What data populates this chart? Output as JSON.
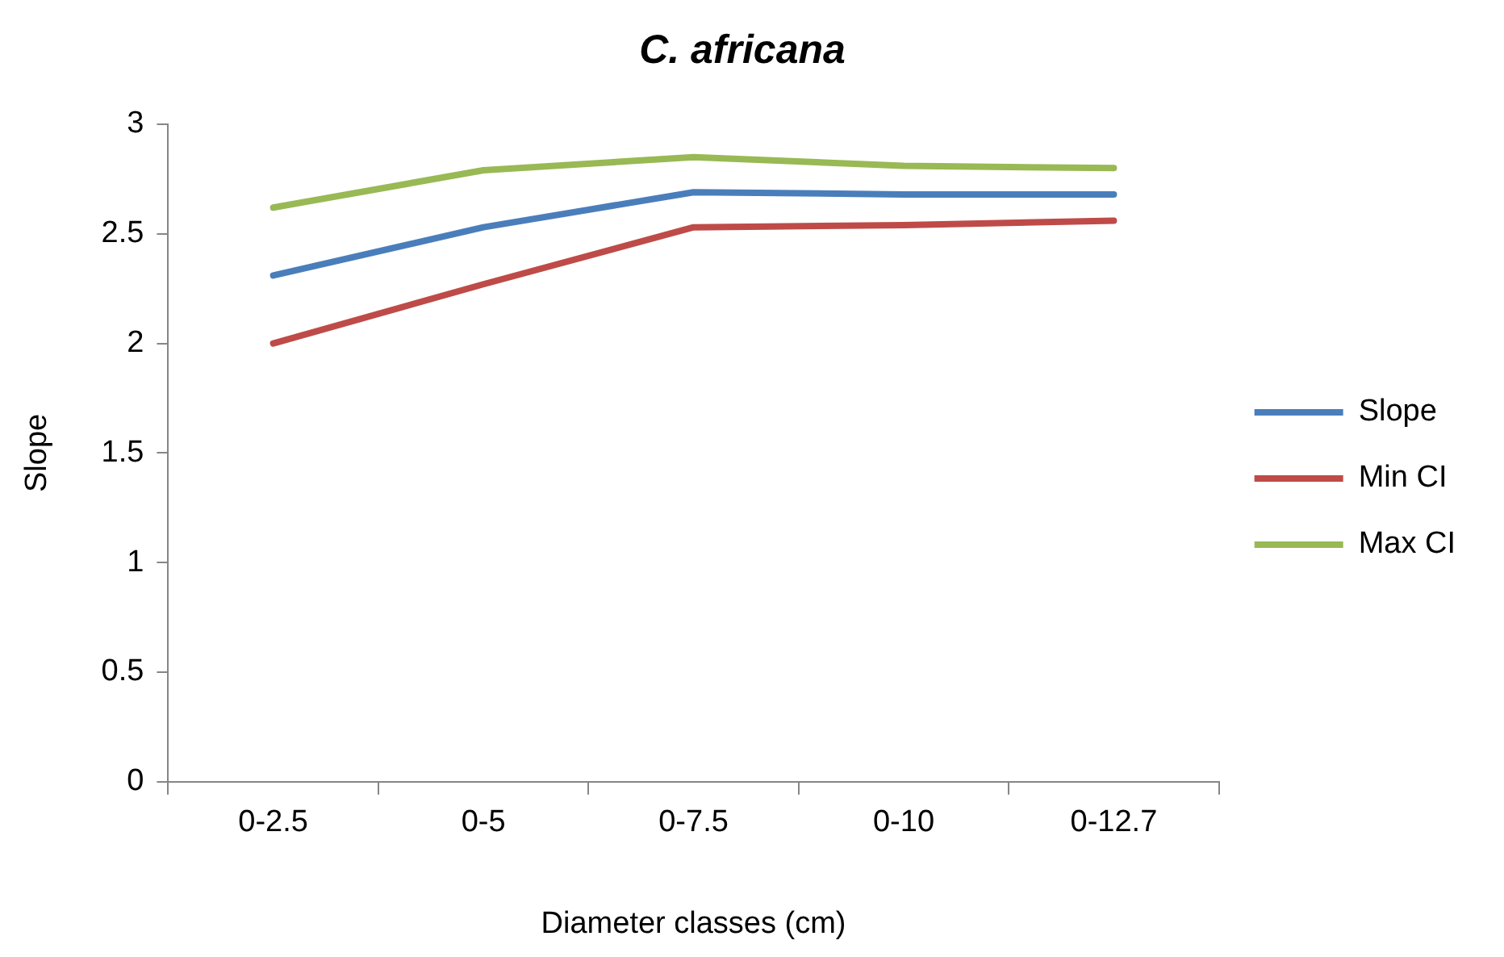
{
  "chart_data": {
    "type": "line",
    "title": "C. africana",
    "xlabel": "Diameter classes (cm)",
    "ylabel": "Slope",
    "categories": [
      "0-2.5",
      "0-5",
      "0-7.5",
      "0-10",
      "0-12.7"
    ],
    "series": [
      {
        "name": "Slope",
        "color": "#4a7ebb",
        "values": [
          2.31,
          2.53,
          2.69,
          2.68,
          2.68
        ]
      },
      {
        "name": "Min CI",
        "color": "#be4b48",
        "values": [
          2.0,
          2.27,
          2.53,
          2.54,
          2.56
        ]
      },
      {
        "name": "Max CI",
        "color": "#98b954",
        "values": [
          2.62,
          2.79,
          2.85,
          2.81,
          2.8
        ]
      }
    ],
    "ylim": [
      0,
      3
    ],
    "yticks": [
      0,
      0.5,
      1,
      1.5,
      2,
      2.5,
      3
    ],
    "legend": "right",
    "marker": "none",
    "line_style": "solid"
  }
}
